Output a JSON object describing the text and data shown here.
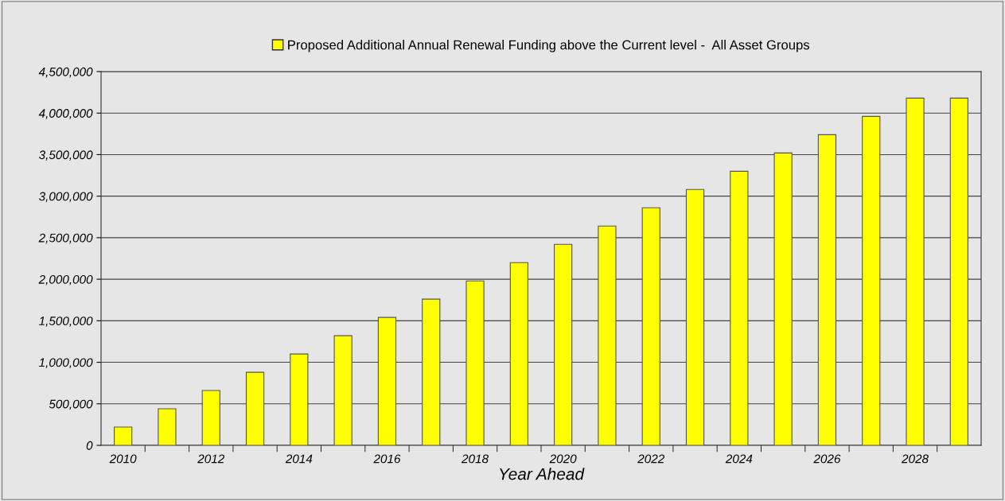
{
  "chart_data": {
    "type": "bar",
    "xlabel": "Year Ahead",
    "categories": [
      "2010",
      null,
      "2012",
      null,
      "2014",
      null,
      "2016",
      null,
      "2018",
      null,
      "2020",
      null,
      "2022",
      null,
      "2024",
      null,
      "2026",
      null,
      "2028",
      null
    ],
    "series": [
      {
        "name": "Proposed Additional Annual Renewal Funding above the Current level -  All Asset Groups",
        "color": "#ffff00",
        "values": [
          220000,
          440000,
          660000,
          880000,
          1100000,
          1320000,
          1540000,
          1760000,
          1980000,
          2200000,
          2420000,
          2640000,
          2860000,
          3080000,
          3300000,
          3520000,
          3740000,
          3960000,
          4180000,
          4180000
        ]
      }
    ],
    "ylim": [
      0,
      4500000
    ],
    "yticks": [
      0,
      {
        "value": 500000,
        "label": "500,000"
      },
      {
        "value": 1000000,
        "label": "1,000,000"
      },
      {
        "value": 1500000,
        "label": "1,500,000"
      },
      {
        "value": 2000000,
        "label": "2,000,000"
      },
      {
        "value": 2500000,
        "label": "2,500,000"
      },
      {
        "value": 3000000,
        "label": "3,000,000"
      },
      {
        "value": 3500000,
        "label": "3,500,000"
      },
      {
        "value": 4000000,
        "label": "4,000,000"
      },
      {
        "value": 4500000,
        "label": "4,500,000"
      }
    ],
    "grid": "y",
    "legend": "top"
  }
}
